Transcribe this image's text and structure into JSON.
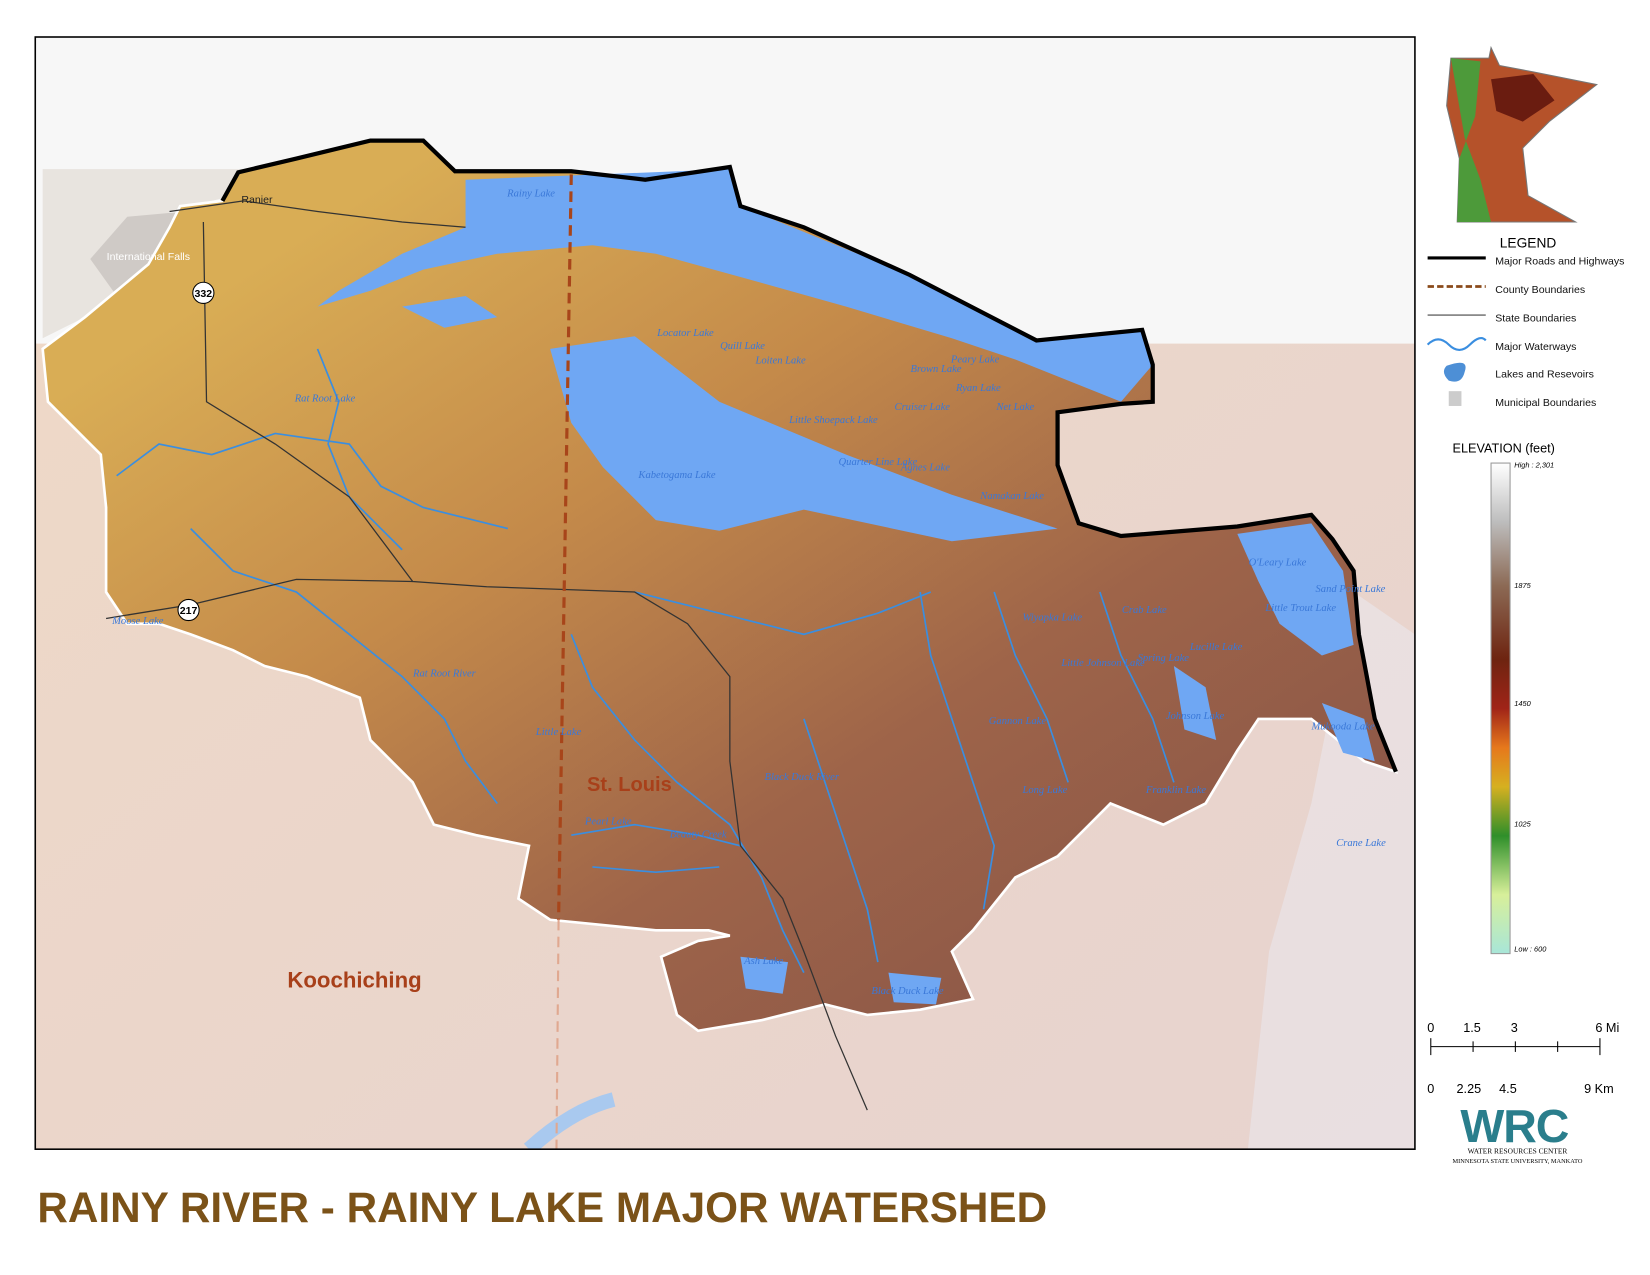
{
  "title": "RAINY RIVER - RAINY LAKE MAJOR WATERSHED",
  "legend": {
    "heading": "LEGEND",
    "items": [
      "Major Roads and Highways",
      "County Boundaries",
      "State Boundaries",
      "Major Waterways",
      "Lakes and Resevoirs",
      "Municipal Boundaries"
    ]
  },
  "elevation": {
    "heading": "ELEVATION (feet)",
    "labels": [
      "High : 2,301",
      "1875",
      "1450",
      "1025",
      "Low : 600"
    ]
  },
  "scale": {
    "miles": [
      "0",
      "1.5",
      "3",
      "6 Mi"
    ],
    "km": [
      "0",
      "2.25",
      "4.5",
      "9 Km"
    ]
  },
  "logo": {
    "mark": "WRC",
    "line1": "WATER RESOURCES CENTER",
    "line2": "MINNESOTA STATE UNIVERSITY, MANKATO"
  },
  "map": {
    "counties": [
      "St. Louis",
      "Koochiching"
    ],
    "places": [
      "Ranier",
      "International Falls"
    ],
    "highways": [
      "332",
      "217"
    ],
    "features": [
      "Rainy Lake",
      "Rat Root Lake",
      "Kabetogama Lake",
      "Locator Lake",
      "Quill Lake",
      "Loiten Lake",
      "Brown Lake",
      "Peary Lake",
      "Ryan Lake",
      "Cruiser Lake",
      "Little Shoepack Lake",
      "Quarter Line Lake",
      "Agnes Lake",
      "Net Lake",
      "Namakan Lake",
      "O'Leary Lake",
      "Sand Point Lake",
      "Little Trout Lake",
      "Moose Lake",
      "Rat Root River",
      "Little Lake",
      "Pearl Lake",
      "Beauty Creek",
      "Black Duck River",
      "Black Duck Lake",
      "Ash Lake",
      "Johnson Lake",
      "Little Johnson Lake",
      "Spring Lake",
      "Lucille Lake",
      "Mukooda Lake",
      "Crane Lake",
      "Franklin Lake",
      "Long Lake",
      "Gannon Lake",
      "Wiyapka Lake",
      "Crab Lake"
    ]
  }
}
